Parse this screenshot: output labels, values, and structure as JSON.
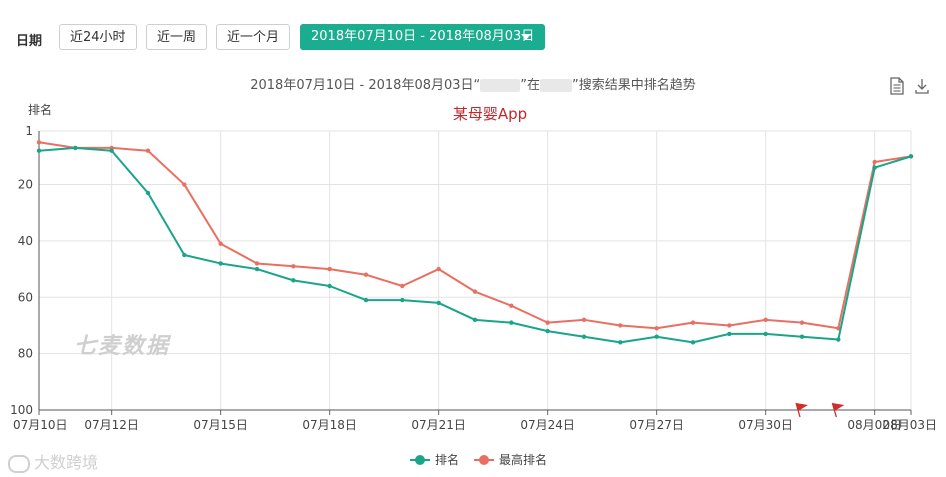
{
  "toolbar": {
    "date_label": "日期",
    "buttons": [
      "近24小时",
      "近一周",
      "近一个月"
    ],
    "range_label": "2018年07月10日 - 2018年08月03日"
  },
  "title": {
    "prefix": "2018年07月10日 - 2018年08月03日“",
    "middle": "”在",
    "suffix": "”搜索结果中排名趋势"
  },
  "subtitle": "某母婴App",
  "watermark": "七麦数据",
  "corner_watermark": "大数跨境",
  "icons": {
    "view": "document-icon",
    "download": "download-icon",
    "flag": "flag-icon"
  },
  "colors": {
    "rank": "#1aa58a",
    "best_rank": "#e96f62",
    "accent": "#1aad8f",
    "subtitle": "#c1272d"
  },
  "chart_data": {
    "type": "line",
    "ylabel": "排名",
    "yticks": [
      1,
      20,
      40,
      60,
      80,
      100
    ],
    "ylim": [
      100,
      1
    ],
    "y_inverted": true,
    "xticks": [
      "07月10日",
      "07月12日",
      "07月15日",
      "07月18日",
      "07月21日",
      "07月24日",
      "07月27日",
      "07月30日",
      "08月02日",
      "08月03日"
    ],
    "x": [
      "07月10日",
      "07月11日",
      "07月12日",
      "07月13日",
      "07月14日",
      "07月15日",
      "07月16日",
      "07月17日",
      "07月18日",
      "07月19日",
      "07月20日",
      "07月21日",
      "07月22日",
      "07月23日",
      "07月24日",
      "07月25日",
      "07月26日",
      "07月27日",
      "07月28日",
      "07月29日",
      "07月30日",
      "07月31日",
      "08月01日",
      "08月02日",
      "08月03日"
    ],
    "series": [
      {
        "name": "排名",
        "color": "#1aa58a",
        "values": [
          8,
          7,
          8,
          23,
          45,
          48,
          50,
          54,
          56,
          61,
          61,
          62,
          68,
          69,
          72,
          74,
          76,
          74,
          76,
          73,
          73,
          74,
          75,
          14,
          10
        ]
      },
      {
        "name": "最高排名",
        "color": "#e96f62",
        "values": [
          5,
          7,
          7,
          8,
          20,
          41,
          48,
          49,
          50,
          52,
          56,
          50,
          58,
          63,
          69,
          68,
          70,
          71,
          69,
          70,
          68,
          69,
          71,
          12,
          10
        ]
      }
    ],
    "flags": [
      "07月31日",
      "08月01日"
    ],
    "grid": true,
    "legend": "bottom-center"
  }
}
